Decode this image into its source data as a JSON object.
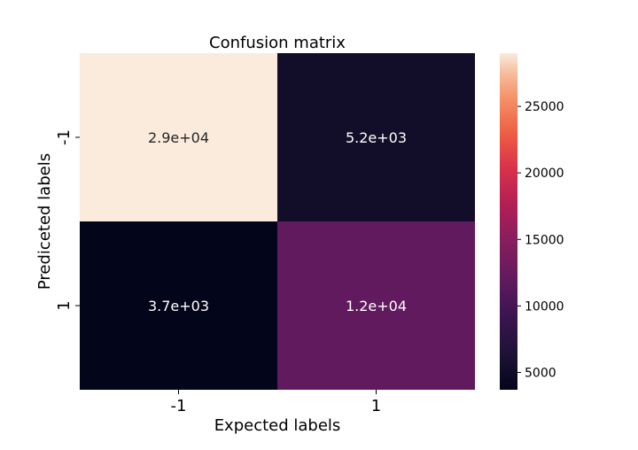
{
  "chart_data": {
    "type": "heatmap",
    "title": "Confusion matrix",
    "xlabel": "Expected labels",
    "ylabel": "Prediceted labels",
    "x_categories": [
      "-1",
      "1"
    ],
    "y_categories": [
      "-1",
      "1"
    ],
    "values": [
      [
        29000,
        5200
      ],
      [
        3700,
        12000
      ]
    ],
    "annotations": [
      [
        "2.9e+04",
        "5.2e+03"
      ],
      [
        "3.7e+03",
        "1.2e+04"
      ]
    ],
    "colorbar": {
      "min": 3700,
      "max": 29000,
      "colormap": "rocket",
      "ticks": [
        5000,
        10000,
        15000,
        20000,
        25000
      ],
      "tick_labels": [
        "5000",
        "10000",
        "15000",
        "20000",
        "25000"
      ]
    },
    "colors": {
      "low_text": "#ffffff",
      "high_text": "#262626"
    }
  }
}
